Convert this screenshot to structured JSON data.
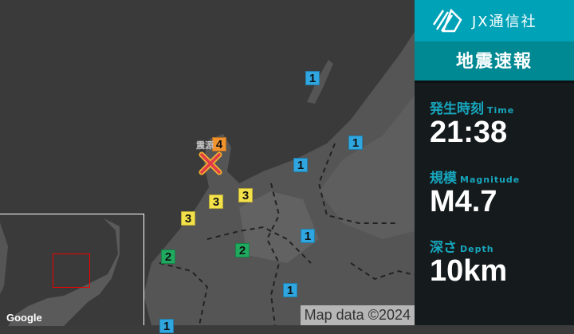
{
  "header": {
    "brand": "JX通信社",
    "title": "地震速報"
  },
  "info": {
    "time": {
      "label": "発生時刻",
      "label_en": "Time",
      "value": "21:38"
    },
    "magnitude": {
      "label": "規模",
      "label_en": "Magnitude",
      "value": "M4.7"
    },
    "depth": {
      "label": "深さ",
      "label_en": "Depth",
      "value": "10km"
    }
  },
  "map": {
    "epicenter_label": "震源",
    "intensity_colors": {
      "1": "#2fa6e0",
      "2": "#1faa5f",
      "3": "#f3e14a",
      "4": "#f0922e"
    },
    "markers": [
      "1",
      "4",
      "1",
      "1",
      "3",
      "3",
      "3",
      "2",
      "2",
      "1",
      "1",
      "1"
    ],
    "attribution": "Map data ©2024",
    "google": "Google"
  }
}
